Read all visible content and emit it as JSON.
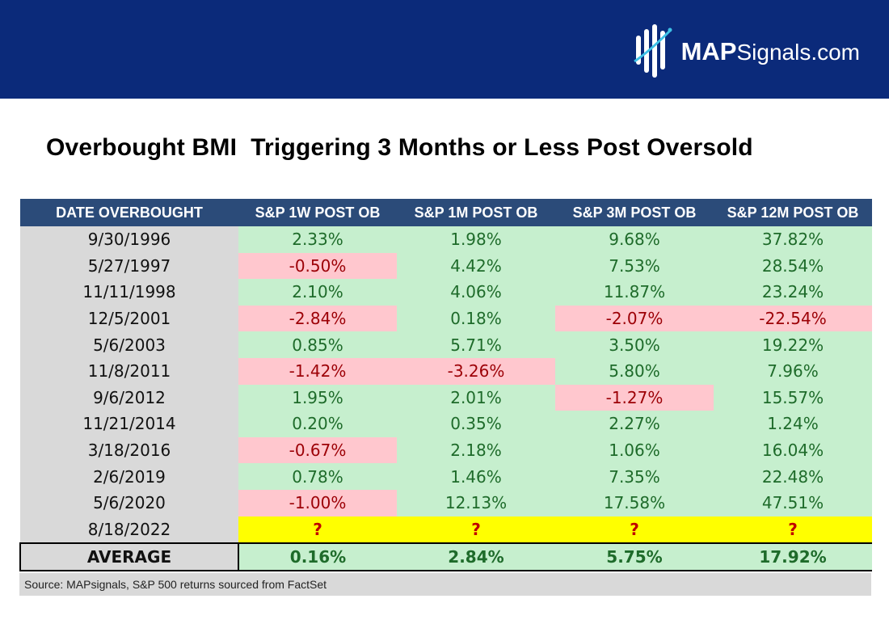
{
  "brand": {
    "name_bold": "MAP",
    "name_rest": "Signals.com",
    "header_color": "#0b2a7a"
  },
  "title": "Overbought BMI  Triggering 3 Months or Less Post Oversold",
  "chart_data": {
    "type": "table",
    "columns": [
      "DATE OVERBOUGHT",
      "S&P 1W POST OB",
      "S&P 1M POST OB",
      "S&P 3M POST OB",
      "S&P 12M POST OB"
    ],
    "rows": [
      {
        "date": "9/30/1996",
        "values": [
          "2.33%",
          "1.98%",
          "9.68%",
          "37.82%"
        ]
      },
      {
        "date": "5/27/1997",
        "values": [
          "-0.50%",
          "4.42%",
          "7.53%",
          "28.54%"
        ]
      },
      {
        "date": "11/11/1998",
        "values": [
          "2.10%",
          "4.06%",
          "11.87%",
          "23.24%"
        ]
      },
      {
        "date": "12/5/2001",
        "values": [
          "-2.84%",
          "0.18%",
          "-2.07%",
          "-22.54%"
        ]
      },
      {
        "date": "5/6/2003",
        "values": [
          "0.85%",
          "5.71%",
          "3.50%",
          "19.22%"
        ]
      },
      {
        "date": "11/8/2011",
        "values": [
          "-1.42%",
          "-3.26%",
          "5.80%",
          "7.96%"
        ]
      },
      {
        "date": "9/6/2012",
        "values": [
          "1.95%",
          "2.01%",
          "-1.27%",
          "15.57%"
        ]
      },
      {
        "date": "11/21/2014",
        "values": [
          "0.20%",
          "0.35%",
          "2.27%",
          "1.24%"
        ]
      },
      {
        "date": "3/18/2016",
        "values": [
          "-0.67%",
          "2.18%",
          "1.06%",
          "16.04%"
        ]
      },
      {
        "date": "2/6/2019",
        "values": [
          "0.78%",
          "1.46%",
          "7.35%",
          "22.48%"
        ]
      },
      {
        "date": "5/6/2020",
        "values": [
          "-1.00%",
          "12.13%",
          "17.58%",
          "47.51%"
        ]
      },
      {
        "date": "8/18/2022",
        "values": [
          "?",
          "?",
          "?",
          "?"
        ]
      }
    ],
    "average": {
      "label": "AVERAGE",
      "values": [
        "0.16%",
        "2.84%",
        "5.75%",
        "17.92%"
      ]
    },
    "source": "Source: MAPsignals, S&P 500 returns sourced from FactSet"
  },
  "colors": {
    "header_bg": "#2b4b79",
    "positive_bg": "#c6efce",
    "negative_bg": "#ffc7ce",
    "pending_bg": "#ffff00",
    "date_bg": "#d9d9d9"
  }
}
